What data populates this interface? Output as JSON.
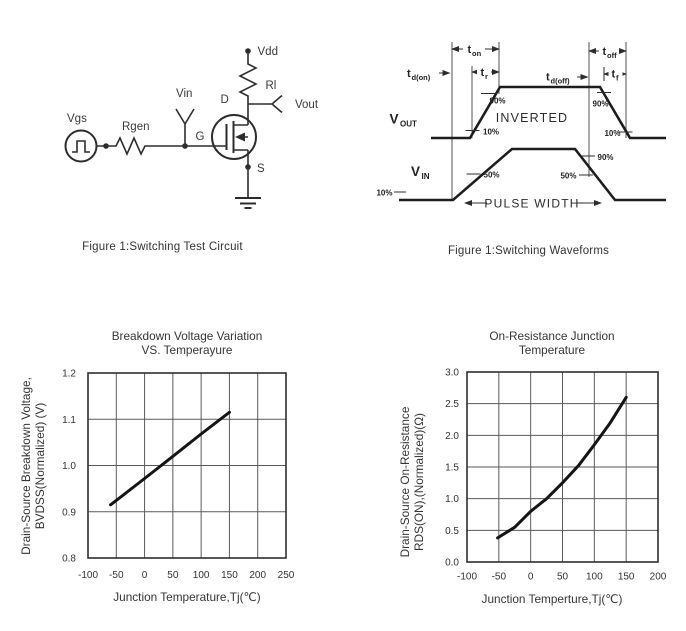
{
  "figure_circuit": {
    "caption": "Figure 1:Switching Test Circuit",
    "labels": {
      "vgs": "Vgs",
      "rgen": "Rgen",
      "vin": "Vin",
      "gate": "G",
      "drain": "D",
      "source": "S",
      "vdd": "Vdd",
      "rl": "Rl",
      "vout": "Vout"
    }
  },
  "figure_waveforms": {
    "caption": "Figure 1:Switching Waveforms",
    "labels": {
      "t_main": "t",
      "sub_d_on": "d(on)",
      "sub_on": "on",
      "sub_r": "r",
      "sub_d_off": "d(off)",
      "sub_off": "off",
      "sub_f": "f",
      "v_main": "V",
      "sub_vout": "OUT",
      "sub_vin": "IN",
      "inverted": "INVERTED",
      "pulse_width": "PULSE WIDTH",
      "pct_90": "90%",
      "pct_50": "50%",
      "pct_10": "10%"
    }
  },
  "colors": {
    "ink": "#2d2d2d",
    "curve": "#151515",
    "grid": "#5a5a5a",
    "background": "#ffffff"
  },
  "chart_data": [
    {
      "type": "line",
      "title_lines": [
        "Breakdown Voltage Variation",
        "VS. Temperayure"
      ],
      "xlabel": "Junction Temperature,Tj(℃)",
      "ylabel_lines": [
        "Drain-Source Breakdown Voltage,",
        "BVDSS(Normalized) (V)"
      ],
      "xlim": [
        -100,
        250
      ],
      "ylim": [
        0.8,
        1.2
      ],
      "xticks": [
        -100,
        -50,
        0,
        50,
        100,
        150,
        200,
        250
      ],
      "xtick_labels": [
        "-100",
        "-50",
        "0",
        "50",
        "100",
        "150",
        "200",
        "250"
      ],
      "yticks": [
        0.8,
        0.9,
        1.0,
        1.1,
        1.2
      ],
      "ytick_labels": [
        "0.8",
        "0.9",
        "1.0",
        "1.1",
        "1.2"
      ],
      "grid": true,
      "legend": "none",
      "series": [
        {
          "name": "BVDSS normalized vs Tj",
          "points": [
            [
              -60,
              0.915
            ],
            [
              0,
              0.972
            ],
            [
              50,
              1.02
            ],
            [
              100,
              1.068
            ],
            [
              150,
              1.115
            ]
          ]
        }
      ]
    },
    {
      "type": "line",
      "title_lines": [
        "On-Resistance Junction",
        "Temperature"
      ],
      "xlabel": "Junction Temperture,Tj(℃)",
      "ylabel_lines": [
        "Drain-Source On-Resistance",
        "RDS(ON),(Normalized)(Ω)"
      ],
      "xlim": [
        -100,
        200
      ],
      "ylim": [
        0.0,
        3.0
      ],
      "xticks": [
        -100,
        -50,
        0,
        50,
        100,
        150,
        200
      ],
      "xtick_labels": [
        "-100",
        "-50",
        "0",
        "50",
        "100",
        "150",
        "200"
      ],
      "yticks": [
        0.0,
        0.5,
        1.0,
        1.5,
        2.0,
        2.5,
        3.0
      ],
      "ytick_labels": [
        "0.0",
        "0.5",
        "1.0",
        "1.5",
        "2.0",
        "2.5",
        "3.0"
      ],
      "grid": true,
      "legend": "none",
      "series": [
        {
          "name": "RDS(ON) normalized vs Tj",
          "points": [
            [
              -52,
              0.38
            ],
            [
              -25,
              0.55
            ],
            [
              0,
              0.8
            ],
            [
              25,
              1.0
            ],
            [
              50,
              1.25
            ],
            [
              75,
              1.52
            ],
            [
              100,
              1.85
            ],
            [
              125,
              2.2
            ],
            [
              150,
              2.6
            ]
          ]
        }
      ]
    }
  ]
}
